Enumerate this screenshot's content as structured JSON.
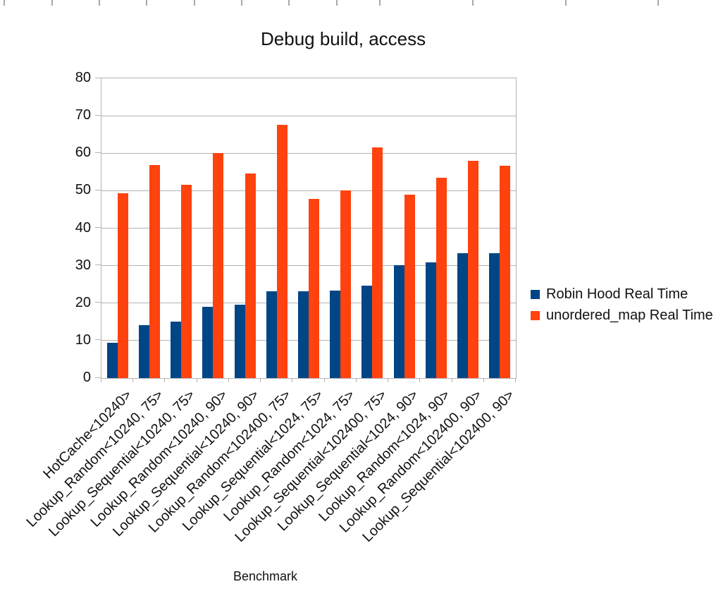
{
  "chart_data": {
    "type": "bar",
    "title": "Debug build, access",
    "xlabel": "Benchmark",
    "ylabel": "",
    "ylim": [
      0,
      80
    ],
    "ytick_step": 10,
    "yticks": [
      0,
      10,
      20,
      30,
      40,
      50,
      60,
      70,
      80
    ],
    "grid": true,
    "legend_position": "right",
    "categories": [
      "HotCache<10240>",
      "Lookup_Random<10240, 75>",
      "Lookup_Sequential<10240, 75>",
      "Lookup_Random<10240, 90>",
      "Lookup_Sequential<10240, 90>",
      "Lookup_Random<102400, 75>",
      "Lookup_Sequential<1024, 75>",
      "Lookup_Random<1024, 75>",
      "Lookup_Sequential<102400, 75>",
      "Lookup_Sequential<1024, 90>",
      "Lookup_Random<1024, 90>",
      "Lookup_Random<102400, 90>",
      "Lookup_Sequential<102400, 90>"
    ],
    "series": [
      {
        "name": "Robin Hood Real Time",
        "color": "#004586",
        "values": [
          9.4,
          14.1,
          15.1,
          19.0,
          19.5,
          23.1,
          23.2,
          23.4,
          24.6,
          30.1,
          30.9,
          33.3,
          33.4
        ]
      },
      {
        "name": "unordered_map Real Time",
        "color": "#ff420e",
        "values": [
          49.4,
          56.9,
          51.6,
          60.1,
          54.5,
          67.5,
          47.8,
          50.0,
          61.6,
          49.0,
          53.4,
          58.0,
          56.6
        ]
      }
    ]
  },
  "colors": {
    "background": "#ffffff",
    "gridline": "#b3b3b3",
    "text": "#111111"
  },
  "top_ruler_ticks_x": [
    5,
    73,
    140,
    207,
    275,
    342,
    409,
    477,
    538,
    670,
    802,
    933
  ]
}
